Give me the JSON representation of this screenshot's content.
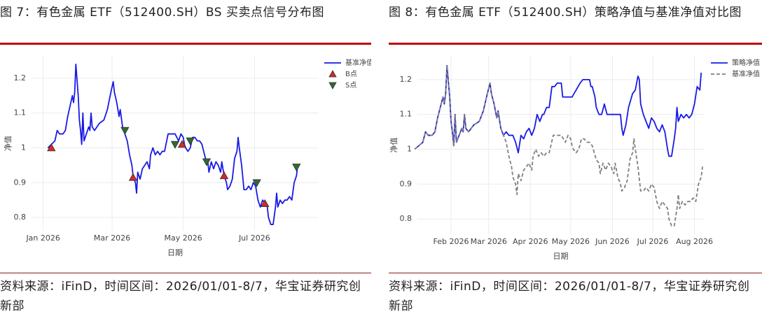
{
  "chart_data": [
    {
      "type": "line",
      "title": "图 7：有色金属 ETF（512400.SH）BS 买卖点信号分布图",
      "source": "资料来源：iFinD，时间区间：2026/01/01-8/7，华宝证券研究创新部",
      "x_label": "日期",
      "y_label": "净值",
      "xlim": [
        -10,
        236
      ],
      "ylim": [
        0.762,
        1.264
      ],
      "xticks": [
        {
          "value": 0,
          "label": "Jan 2026"
        },
        {
          "value": 59,
          "label": "Mar 2026"
        },
        {
          "value": 120,
          "label": "May 2026"
        },
        {
          "value": 181,
          "label": "Jul 2026"
        }
      ],
      "yticks": [
        0.8,
        0.9,
        1,
        1.1,
        1.2
      ],
      "grid": true,
      "legend": "top-right",
      "series": [
        {
          "name": "基准净值",
          "color": "#1a1ae6",
          "x": [
            4,
            7,
            10,
            12,
            14,
            17,
            19,
            21,
            23,
            25,
            26,
            27,
            28,
            30,
            31,
            32,
            33,
            34,
            35,
            37,
            39,
            40,
            41,
            42,
            44,
            48,
            52,
            55,
            58,
            60,
            61,
            63,
            65,
            66,
            68,
            70,
            72,
            74,
            76,
            77,
            79,
            80,
            81,
            83,
            85,
            87,
            89,
            91,
            92,
            94,
            96,
            98,
            100,
            102,
            104,
            107,
            110,
            113,
            116,
            118,
            120,
            121,
            122,
            124,
            126,
            128,
            130,
            132,
            134,
            136,
            139,
            141,
            142,
            144,
            146,
            148,
            150,
            152,
            153,
            155,
            157,
            158,
            160,
            162,
            164,
            166,
            167,
            168,
            170,
            172,
            174,
            176,
            178,
            180,
            182,
            184,
            186,
            188,
            190,
            192,
            193,
            195,
            197,
            199,
            200,
            201,
            203,
            205,
            207,
            209,
            211,
            213,
            215,
            217,
            218
          ],
          "values": [
            1,
            1.01,
            1.02,
            1.05,
            1.04,
            1.04,
            1.05,
            1.09,
            1.12,
            1.15,
            1.13,
            1.16,
            1.24,
            1.15,
            1.08,
            1.05,
            1.01,
            1.1,
            1.02,
            1.04,
            1.06,
            1.05,
            1.1,
            1.06,
            1.05,
            1.07,
            1.08,
            1.11,
            1.16,
            1.19,
            1.16,
            1.13,
            1.09,
            1.11,
            1.06,
            1.04,
            1.02,
            0.98,
            0.95,
            0.92,
            0.9,
            0.87,
            0.93,
            0.91,
            0.94,
            0.95,
            0.96,
            0.94,
            0.98,
            1,
            0.98,
            0.99,
            0.98,
            0.99,
            0.99,
            1.04,
            1.04,
            1.04,
            1.02,
            1.04,
            1.03,
            1.01,
            1,
            0.99,
            1,
            1.03,
            1.03,
            1.02,
            1.02,
            1.01,
            0.97,
            0.96,
            0.93,
            0.96,
            0.94,
            0.96,
            0.95,
            0.93,
            0.96,
            0.92,
            0.9,
            0.88,
            0.89,
            0.91,
            0.97,
            0.99,
            1.03,
            1,
            0.95,
            0.88,
            0.88,
            0.89,
            0.88,
            0.9,
            0.89,
            0.85,
            0.83,
            0.85,
            0.84,
            0.83,
            0.8,
            0.78,
            0.78,
            0.83,
            0.87,
            0.83,
            0.85,
            0.84,
            0.85,
            0.85,
            0.86,
            0.85,
            0.9,
            0.92,
            0.95
          ]
        },
        {
          "name": "B点",
          "color": "#d62728",
          "marker": "triangle-up",
          "x": [
            7,
            77,
            119,
            155,
            190
          ],
          "values": [
            1,
            0.915,
            1.01,
            0.92,
            0.84
          ]
        },
        {
          "name": "S点",
          "color": "#2e6b2e",
          "marker": "triangle-down",
          "x": [
            70,
            113,
            126,
            140,
            183,
            217
          ],
          "values": [
            1.05,
            1.01,
            1.02,
            0.96,
            0.9,
            0.945
          ]
        }
      ]
    },
    {
      "type": "line",
      "title": "图 8：有色金属 ETF（512400.SH）策略净值与基准净值对比图",
      "source": "资料来源：iFinD，时间区间：2026/01/01-8/7，华宝证券研究创新部",
      "x_label": "日期",
      "y_label": "净值",
      "xlim": [
        6,
        219
      ],
      "ylim": [
        0.756,
        1.268
      ],
      "xticks": [
        {
          "value": 31,
          "label": "Feb 2026"
        },
        {
          "value": 59,
          "label": "Mar 2026"
        },
        {
          "value": 90,
          "label": "Apr 2026"
        },
        {
          "value": 120,
          "label": "May 2026"
        },
        {
          "value": 151,
          "label": "Jun 2026"
        },
        {
          "value": 181,
          "label": "Jul 2026"
        },
        {
          "value": 212,
          "label": "Aug 2026"
        }
      ],
      "yticks": [
        0.8,
        0.9,
        1,
        1.1,
        1.2
      ],
      "grid": true,
      "legend": "top-right",
      "series": [
        {
          "name": "策略净值",
          "color": "#1a1ae6",
          "x": [
            4,
            7,
            10,
            12,
            14,
            17,
            19,
            21,
            23,
            25,
            26,
            27,
            28,
            30,
            31,
            32,
            33,
            34,
            35,
            37,
            39,
            40,
            41,
            42,
            44,
            48,
            52,
            55,
            58,
            60,
            61,
            63,
            65,
            66,
            68,
            70,
            72,
            74,
            77,
            79,
            81,
            83,
            85,
            87,
            89,
            91,
            93,
            95,
            97,
            99,
            100,
            102,
            104,
            106,
            108,
            110,
            113,
            114,
            116,
            118,
            121,
            124,
            127,
            129,
            132,
            134,
            135,
            136,
            138,
            139,
            141,
            143,
            145,
            147,
            150,
            155,
            157,
            158,
            159,
            161,
            163,
            166,
            168,
            170,
            171,
            172,
            174,
            176,
            178,
            180,
            182,
            184,
            186,
            188,
            190,
            192,
            193,
            195,
            197,
            198,
            199,
            200,
            202,
            204,
            206,
            208,
            210,
            212,
            214,
            216,
            217
          ],
          "values": [
            1,
            1.01,
            1.02,
            1.05,
            1.04,
            1.04,
            1.05,
            1.09,
            1.12,
            1.15,
            1.13,
            1.16,
            1.24,
            1.15,
            1.08,
            1.05,
            1.01,
            1.1,
            1.02,
            1.04,
            1.06,
            1.05,
            1.1,
            1.06,
            1.05,
            1.07,
            1.08,
            1.11,
            1.16,
            1.19,
            1.16,
            1.13,
            1.09,
            1.11,
            1.06,
            1.04,
            1.05,
            1.04,
            1.04,
            1.02,
            0.99,
            1.04,
            1.03,
            1.05,
            1.06,
            1.04,
            1.06,
            1.1,
            1.08,
            1.1,
            1.1,
            1.12,
            1.12,
            1.18,
            1.18,
            1.19,
            1.19,
            1.15,
            1.15,
            1.15,
            1.15,
            1.17,
            1.19,
            1.2,
            1.2,
            1.2,
            1.18,
            1.18,
            1.15,
            1.12,
            1.1,
            1.1,
            1.13,
            1.1,
            1.1,
            1.1,
            1.1,
            1.06,
            1.04,
            1.07,
            1.12,
            1.16,
            1.17,
            1.21,
            1.2,
            1.13,
            1.1,
            1.08,
            1.06,
            1.09,
            1.08,
            1.06,
            1.05,
            1.07,
            1.05,
            1,
            0.98,
            0.98,
            1.03,
            1.06,
            1.12,
            1.08,
            1.1,
            1.09,
            1.1,
            1.09,
            1.1,
            1.13,
            1.18,
            1.17,
            1.22
          ]
        },
        {
          "name": "基准净值",
          "color": "#808080",
          "dash": true,
          "x": [
            4,
            7,
            10,
            12,
            14,
            17,
            19,
            21,
            23,
            25,
            26,
            27,
            28,
            30,
            31,
            32,
            33,
            34,
            35,
            37,
            39,
            40,
            41,
            42,
            44,
            48,
            52,
            55,
            58,
            60,
            61,
            63,
            65,
            66,
            68,
            70,
            72,
            74,
            76,
            77,
            79,
            80,
            81,
            83,
            85,
            87,
            89,
            91,
            92,
            94,
            96,
            98,
            100,
            102,
            104,
            107,
            110,
            113,
            116,
            118,
            120,
            121,
            122,
            124,
            126,
            128,
            130,
            132,
            134,
            136,
            139,
            141,
            142,
            144,
            146,
            148,
            150,
            152,
            153,
            155,
            157,
            158,
            160,
            162,
            164,
            166,
            167,
            168,
            170,
            172,
            174,
            176,
            178,
            180,
            182,
            184,
            186,
            188,
            190,
            192,
            193,
            195,
            197,
            199,
            200,
            201,
            203,
            205,
            207,
            209,
            211,
            213,
            215,
            217,
            218
          ],
          "values": [
            1,
            1.01,
            1.02,
            1.05,
            1.04,
            1.04,
            1.05,
            1.09,
            1.12,
            1.15,
            1.13,
            1.16,
            1.24,
            1.15,
            1.08,
            1.05,
            1.01,
            1.1,
            1.02,
            1.04,
            1.06,
            1.05,
            1.1,
            1.06,
            1.05,
            1.07,
            1.08,
            1.11,
            1.16,
            1.19,
            1.16,
            1.13,
            1.09,
            1.11,
            1.06,
            1.04,
            1.02,
            0.98,
            0.95,
            0.92,
            0.9,
            0.87,
            0.93,
            0.91,
            0.94,
            0.95,
            0.96,
            0.94,
            0.98,
            1,
            0.98,
            0.99,
            0.98,
            0.99,
            0.99,
            1.04,
            1.04,
            1.04,
            1.02,
            1.04,
            1.03,
            1.01,
            1,
            0.99,
            1,
            1.03,
            1.03,
            1.02,
            1.02,
            1.01,
            0.97,
            0.96,
            0.93,
            0.96,
            0.94,
            0.96,
            0.95,
            0.93,
            0.96,
            0.92,
            0.9,
            0.88,
            0.89,
            0.91,
            0.97,
            0.99,
            1.03,
            1,
            0.95,
            0.88,
            0.88,
            0.89,
            0.88,
            0.9,
            0.89,
            0.85,
            0.83,
            0.85,
            0.84,
            0.83,
            0.8,
            0.78,
            0.78,
            0.83,
            0.87,
            0.83,
            0.85,
            0.84,
            0.85,
            0.85,
            0.86,
            0.85,
            0.9,
            0.92,
            0.95
          ]
        }
      ]
    }
  ]
}
